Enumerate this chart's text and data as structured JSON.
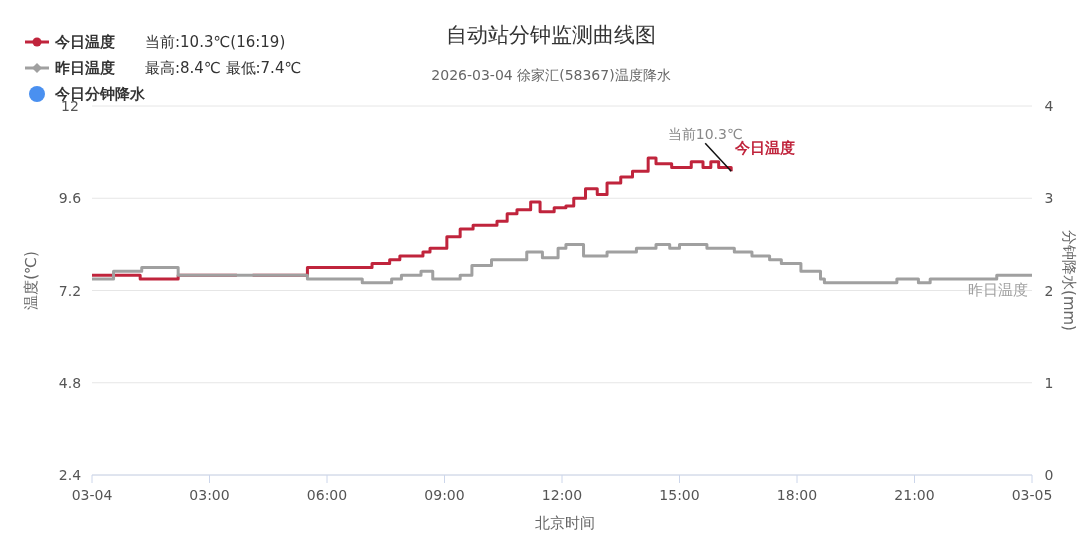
{
  "chart_data": {
    "type": "step",
    "title": "自动站分钟监测曲线图",
    "subtitle": "2026-03-04 徐家汇(58367)温度降水",
    "xlabel": "北京时间",
    "ylabel": "温度(℃)",
    "y2label": "分钟降水(mm)",
    "xlim": [
      0,
      24
    ],
    "xticks": [
      {
        "value": 0,
        "label": "03-04"
      },
      {
        "value": 3,
        "label": "03:00"
      },
      {
        "value": 6,
        "label": "06:00"
      },
      {
        "value": 9,
        "label": "09:00"
      },
      {
        "value": 12,
        "label": "12:00"
      },
      {
        "value": 15,
        "label": "15:00"
      },
      {
        "value": 18,
        "label": "18:00"
      },
      {
        "value": 21,
        "label": "21:00"
      },
      {
        "value": 24,
        "label": "03-05"
      }
    ],
    "ylim": [
      2.4,
      12
    ],
    "yticks": [
      2.4,
      4.8,
      7.2,
      9.6,
      12
    ],
    "y2lim": [
      0,
      4
    ],
    "y2ticks": [
      0,
      1,
      2,
      3,
      4
    ],
    "grid": "y",
    "legend": "top left",
    "annotations": [
      "当前:10.3℃(16:19)",
      "最高:8.4℃ 最低:7.4℃",
      {
        "text": "当前10.3℃",
        "x": 16.32,
        "y": 10.3
      }
    ],
    "series": [
      {
        "name": "今日温度",
        "color": "#c0243c",
        "x": [
          0,
          1.23,
          2.2,
          3.7,
          3.71,
          4.1,
          5.5,
          7.15,
          7.6,
          7.86,
          8.45,
          8.63,
          9.06,
          9.4,
          9.73,
          10.1,
          10.34,
          10.6,
          10.85,
          11.2,
          11.44,
          11.8,
          12.1,
          12.3,
          12.6,
          12.9,
          13.15,
          13.5,
          13.8,
          14.2,
          14.4,
          14.8,
          15.3,
          15.6,
          15.8,
          16.0,
          16.32
        ],
        "values": [
          7.6,
          7.5,
          7.6,
          7.6,
          null,
          7.6,
          7.8,
          7.9,
          8.0,
          8.1,
          8.2,
          8.3,
          8.6,
          8.8,
          8.9,
          8.9,
          9.0,
          9.2,
          9.3,
          9.5,
          9.25,
          9.35,
          9.4,
          9.6,
          9.85,
          9.7,
          10.0,
          10.15,
          10.3,
          10.65,
          10.5,
          10.4,
          10.55,
          10.4,
          10.55,
          10.4,
          10.3
        ]
      },
      {
        "name": "昨日温度",
        "color": "#a0a0a0",
        "x": [
          0,
          0.55,
          1.27,
          2.2,
          5.5,
          6.9,
          7.65,
          7.9,
          8.4,
          8.7,
          9.4,
          9.7,
          10.2,
          11.1,
          11.5,
          11.9,
          12.1,
          12.55,
          13.15,
          13.9,
          14.4,
          14.75,
          15.0,
          15.7,
          16.4,
          16.85,
          17.3,
          17.6,
          18.1,
          18.6,
          18.7,
          20.55,
          21.1,
          21.4,
          23.1,
          24
        ],
        "values": [
          7.5,
          7.7,
          7.8,
          7.6,
          7.5,
          7.4,
          7.5,
          7.6,
          7.7,
          7.5,
          7.6,
          7.85,
          8.0,
          8.2,
          8.05,
          8.3,
          8.4,
          8.1,
          8.2,
          8.3,
          8.4,
          8.3,
          8.4,
          8.3,
          8.2,
          8.1,
          8.0,
          7.9,
          7.7,
          7.5,
          7.4,
          7.5,
          7.4,
          7.5,
          7.6,
          7.6
        ]
      },
      {
        "name": "今日分钟降水",
        "color": "#4a90f0",
        "type": "bar"
      }
    ]
  }
}
